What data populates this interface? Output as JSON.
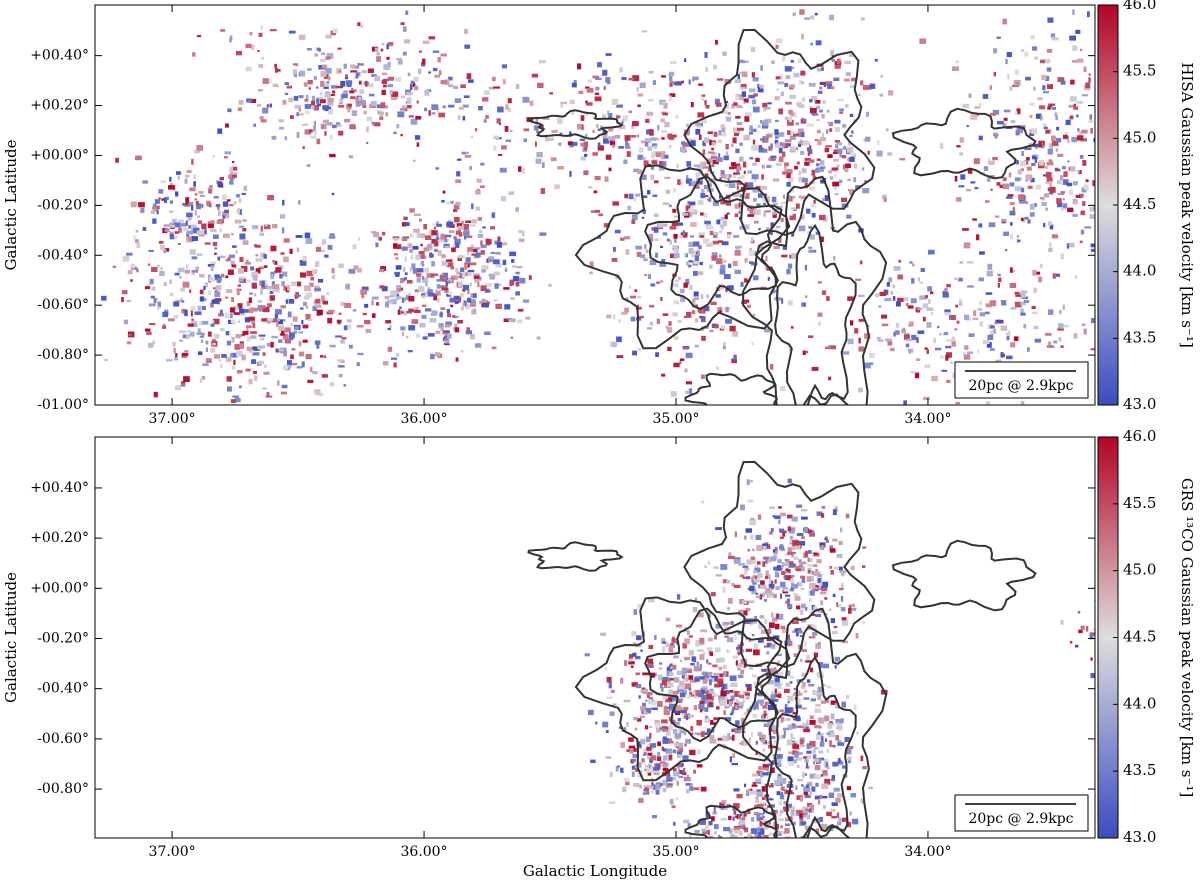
{
  "chart_data": [
    {
      "type": "map",
      "xlabel": "",
      "ylabel": "Galactic Latitude",
      "colorbar_label": "HISA Gaussian peak velocity [km s⁻¹]",
      "scalebar": "20pc @ 2.9kpc",
      "xlim": [
        37.306,
        33.337
      ],
      "ylim": [
        -1.0,
        0.603
      ],
      "xticks": [
        {
          "value": 37,
          "label": "37.00°"
        },
        {
          "value": 36,
          "label": "36.00°"
        },
        {
          "value": 35,
          "label": "35.00°"
        },
        {
          "value": 34,
          "label": "34.00°"
        }
      ],
      "yticks": [
        {
          "value": 0.4,
          "label": "+00.40°"
        },
        {
          "value": 0.2,
          "label": "+00.20°"
        },
        {
          "value": 0,
          "label": "+00.00°"
        },
        {
          "value": -0.2,
          "label": "-00.20°"
        },
        {
          "value": -0.4,
          "label": "-00.40°"
        },
        {
          "value": -0.6,
          "label": "-00.60°"
        },
        {
          "value": -0.8,
          "label": "-00.80°"
        },
        {
          "value": -1.0,
          "label": "-01.00°"
        }
      ],
      "clim": [
        43.0,
        46.0
      ],
      "cticks": [
        {
          "value": 43,
          "label": "43.0"
        },
        {
          "value": 43.5,
          "label": "43.5"
        },
        {
          "value": 44,
          "label": "44.0"
        },
        {
          "value": 44.5,
          "label": "44.5"
        },
        {
          "value": 45,
          "label": "45.0"
        },
        {
          "value": 45.5,
          "label": "45.5"
        },
        {
          "value": 46,
          "label": "46.0"
        }
      ],
      "cmap": [
        "#3b4cc0",
        "#dddddd",
        "#b40426"
      ]
    },
    {
      "type": "map",
      "xlabel": "Galactic Longitude",
      "ylabel": "Galactic Latitude",
      "colorbar_label": "GRS ¹³CO Gaussian peak velocity [km s⁻¹]",
      "scalebar": "20pc @ 2.9kpc",
      "xlim": [
        37.306,
        33.337
      ],
      "ylim": [
        -0.995,
        0.603
      ],
      "xticks": [
        {
          "value": 37,
          "label": "37.00°"
        },
        {
          "value": 36,
          "label": "36.00°"
        },
        {
          "value": 35,
          "label": "35.00°"
        },
        {
          "value": 34,
          "label": "34.00°"
        }
      ],
      "yticks": [
        {
          "value": 0.4,
          "label": "+00.40°"
        },
        {
          "value": 0.2,
          "label": "+00.20°"
        },
        {
          "value": 0,
          "label": "+00.00°"
        },
        {
          "value": -0.2,
          "label": "-00.20°"
        },
        {
          "value": -0.4,
          "label": "-00.40°"
        },
        {
          "value": -0.6,
          "label": "-00.60°"
        },
        {
          "value": -0.8,
          "label": "-00.80°"
        }
      ],
      "clim": [
        43.0,
        46.0
      ],
      "cticks": [
        {
          "value": 43,
          "label": "43.0"
        },
        {
          "value": 43.5,
          "label": "43.5"
        },
        {
          "value": 44,
          "label": "44.0"
        },
        {
          "value": 44.5,
          "label": "44.5"
        },
        {
          "value": 45,
          "label": "45.0"
        },
        {
          "value": 45.5,
          "label": "45.5"
        },
        {
          "value": 46,
          "label": "46.0"
        }
      ],
      "cmap": [
        "#3b4cc0",
        "#dddddd",
        "#b40426"
      ]
    }
  ]
}
